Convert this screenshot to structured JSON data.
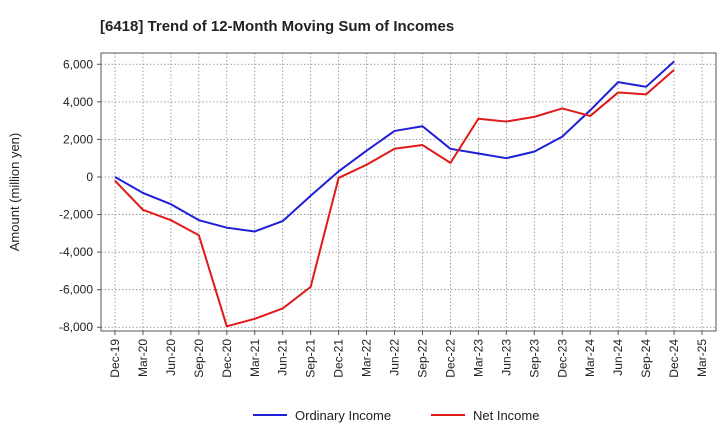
{
  "chart_data": {
    "type": "line",
    "title": "[6418]  Trend of 12-Month Moving Sum of Incomes",
    "xlabel": "",
    "ylabel": "Amount (million yen)",
    "ylim": [
      -8200,
      6600
    ],
    "yticks": [
      6000,
      4000,
      2000,
      0,
      -2000,
      -4000,
      -6000,
      -8000
    ],
    "ytick_labels": [
      "6,000",
      "4,000",
      "2,000",
      "0",
      "-2,000",
      "-4,000",
      "-6,000",
      "-8,000"
    ],
    "grid": true,
    "legend_position": "bottom-center",
    "categories": [
      "Dec-19",
      "Mar-20",
      "Jun-20",
      "Sep-20",
      "Dec-20",
      "Mar-21",
      "Jun-21",
      "Sep-21",
      "Dec-21",
      "Mar-22",
      "Jun-22",
      "Sep-22",
      "Dec-22",
      "Mar-23",
      "Jun-23",
      "Sep-23",
      "Dec-23",
      "Mar-24",
      "Jun-24",
      "Sep-24",
      "Dec-24",
      "Mar-25"
    ],
    "series": [
      {
        "name": "Ordinary Income",
        "color": "#1f1fd6",
        "values": [
          0,
          -850,
          -1450,
          -2300,
          -2700,
          -2900,
          -2350,
          -1000,
          300,
          1400,
          2450,
          2700,
          1500,
          1250,
          1000,
          1350,
          2150,
          3550,
          5050,
          4800,
          6150,
          null
        ]
      },
      {
        "name": "Net Income",
        "color": "#e01919",
        "values": [
          -200,
          -1750,
          -2300,
          -3100,
          -7950,
          -7550,
          -7000,
          -5850,
          -50,
          650,
          1500,
          1700,
          750,
          3100,
          2950,
          3200,
          3650,
          3250,
          4500,
          4400,
          5700,
          null
        ]
      }
    ]
  }
}
